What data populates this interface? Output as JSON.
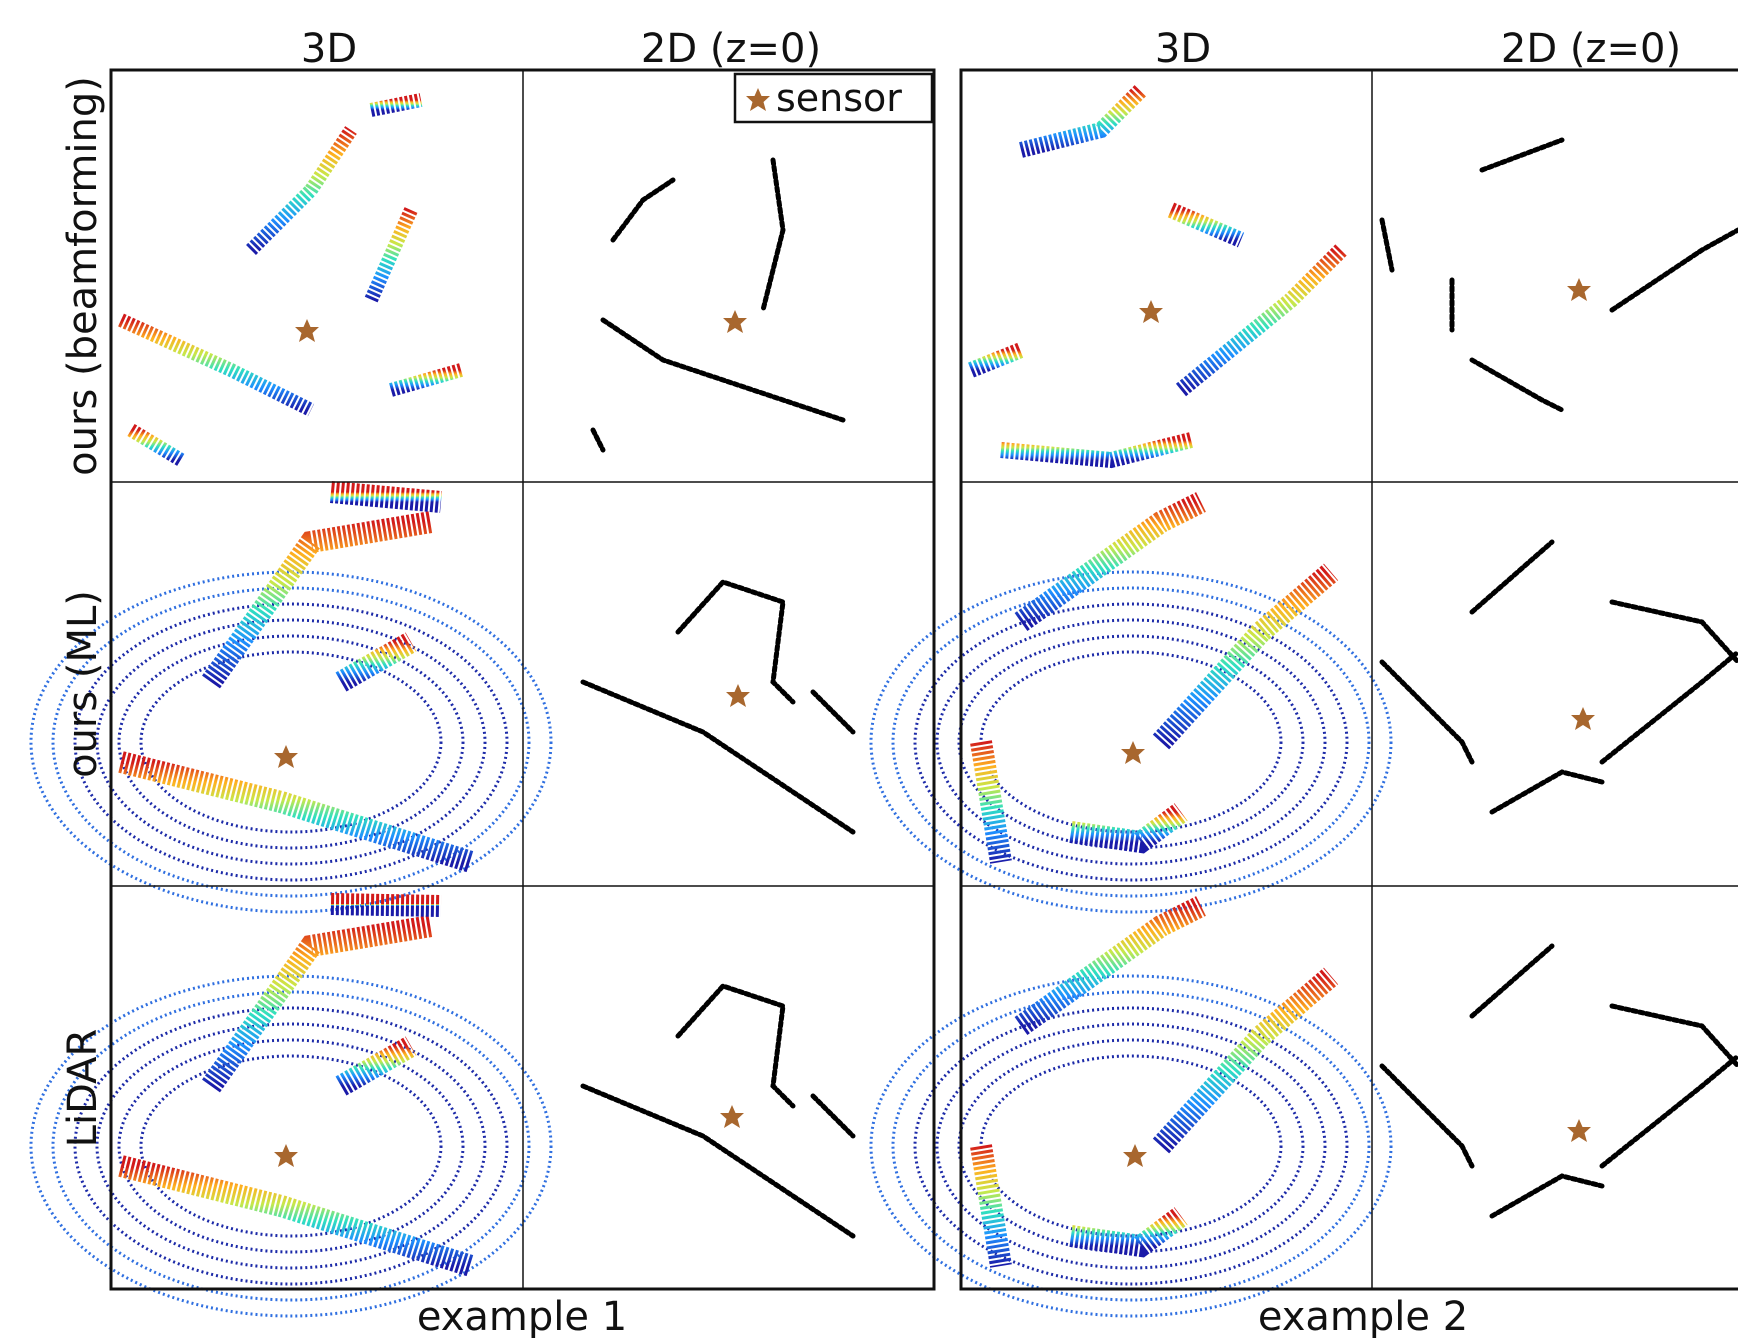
{
  "examples": [
    {
      "label": "example 1",
      "column_headers": [
        "3D",
        "2D (z=0)"
      ]
    },
    {
      "label": "example 2",
      "column_headers": [
        "3D",
        "2D (z=0)"
      ]
    }
  ],
  "row_labels": [
    "ours (beamforming)",
    "ours (ML)",
    "LiDAR"
  ],
  "legend": "sensor"
}
